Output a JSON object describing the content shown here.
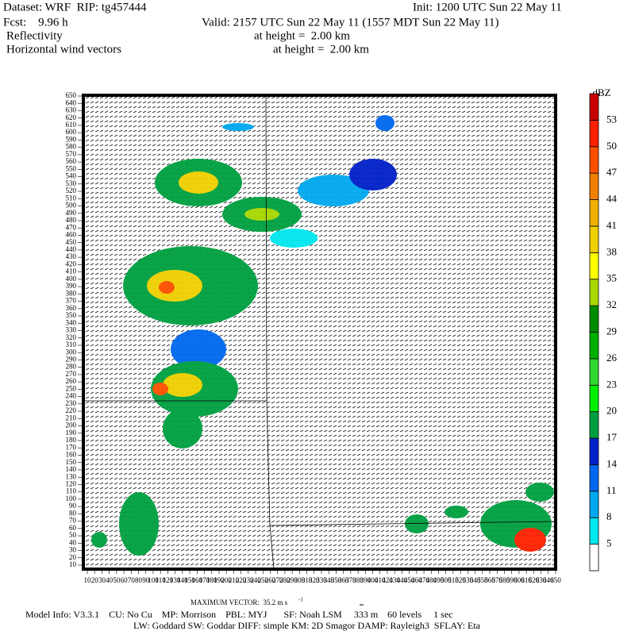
{
  "header": {
    "dataset": "Dataset: WRF  RIP: tg457444",
    "init": "Init: 1200 UTC Sun 22 May 11",
    "fcst": "Fcst:    9.96 h",
    "valid": "Valid: 2157 UTC Sun 22 May 11 (1557 MDT Sun 22 May 11)",
    "field1": "Reflectivity",
    "field1_height": "at height =  2.00 km",
    "field2": "Horizontal wind vectors",
    "field2_height": "at height =  2.00 km"
  },
  "plot": {
    "yticks": [
      10,
      20,
      30,
      40,
      50,
      60,
      70,
      80,
      90,
      100,
      110,
      120,
      130,
      140,
      150,
      160,
      170,
      180,
      190,
      200,
      210,
      220,
      230,
      240,
      250,
      260,
      270,
      280,
      290,
      300,
      310,
      320,
      330,
      340,
      350,
      360,
      370,
      380,
      390,
      400,
      410,
      420,
      430,
      440,
      450,
      460,
      470,
      480,
      490,
      500,
      510,
      520,
      530,
      540,
      550,
      560,
      570,
      580,
      590,
      600,
      610,
      620,
      630,
      640,
      650
    ],
    "xticks": [
      10,
      20,
      30,
      40,
      50,
      60,
      70,
      80,
      90,
      100,
      110,
      120,
      130,
      140,
      150,
      160,
      170,
      180,
      190,
      200,
      210,
      220,
      230,
      240,
      250,
      260,
      270,
      280,
      290,
      300,
      310,
      320,
      330,
      340,
      350,
      360,
      370,
      380,
      390,
      400,
      410,
      420,
      430,
      440,
      450,
      460,
      470,
      480,
      490,
      500,
      510,
      520,
      530,
      540,
      550,
      560,
      570,
      580,
      590,
      600,
      610,
      620,
      630,
      640,
      650
    ]
  },
  "colorbar": {
    "unit": "dBZ",
    "levels": [
      5,
      8,
      11,
      14,
      17,
      20,
      23,
      26,
      29,
      32,
      35,
      38,
      41,
      44,
      47,
      50,
      53
    ],
    "colors": [
      "#ffffff",
      "#00e8f0",
      "#00a8f0",
      "#0068f0",
      "#0020c8",
      "#00a040",
      "#00f000",
      "#30d830",
      "#00b000",
      "#008c00",
      "#a8d800",
      "#ffff00",
      "#f0d000",
      "#f0b000",
      "#f08000",
      "#ff5000",
      "#ff2000",
      "#c80000"
    ]
  },
  "footer": {
    "max_vector": "MAXIMUM VECTOR:  35.2 m s",
    "max_vector_unit": "-1",
    "model_info": "Model Info: V3.3.1    CU: No Cu    MP: Morrison    PBL: MYJ       SF: Noah LSM     333 m    60 levels     1 sec",
    "model_info2": "LW: Goddard SW: Goddar DIFF: simple KM: 2D Smagor DAMP: Rayleigh3  SFLAY: Eta"
  }
}
